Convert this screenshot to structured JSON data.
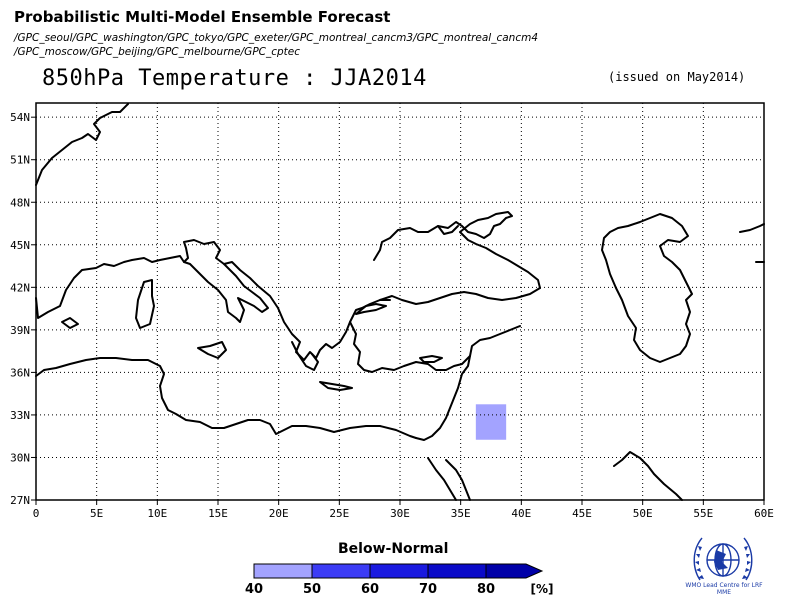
{
  "header": {
    "title": "Probabilistic Multi-Model Ensemble Forecast",
    "gpc_line1": "/GPC_seoul/GPC_washington/GPC_tokyo/GPC_exeter/GPC_montreal_cancm3/GPC_montreal_cancm4",
    "gpc_line2": "/GPC_moscow/GPC_beijing/GPC_melbourne/GPC_cptec"
  },
  "map": {
    "title": "850hPa Temperature : JJA2014",
    "issued": "(issued on May2014)",
    "lon_range": [
      0,
      60
    ],
    "lat_range": [
      27,
      55
    ],
    "lon_ticks": [
      {
        "v": 0,
        "label": "0"
      },
      {
        "v": 5,
        "label": "5E"
      },
      {
        "v": 10,
        "label": "10E"
      },
      {
        "v": 15,
        "label": "15E"
      },
      {
        "v": 20,
        "label": "20E"
      },
      {
        "v": 25,
        "label": "25E"
      },
      {
        "v": 30,
        "label": "30E"
      },
      {
        "v": 35,
        "label": "35E"
      },
      {
        "v": 40,
        "label": "40E"
      },
      {
        "v": 45,
        "label": "45E"
      },
      {
        "v": 50,
        "label": "50E"
      },
      {
        "v": 55,
        "label": "55E"
      },
      {
        "v": 60,
        "label": "60E"
      }
    ],
    "lat_ticks": [
      {
        "v": 27,
        "label": "27N"
      },
      {
        "v": 30,
        "label": "30N"
      },
      {
        "v": 33,
        "label": "33N"
      },
      {
        "v": 36,
        "label": "36N"
      },
      {
        "v": 39,
        "label": "39N"
      },
      {
        "v": 42,
        "label": "42N"
      },
      {
        "v": 45,
        "label": "45N"
      },
      {
        "v": 48,
        "label": "48N"
      },
      {
        "v": 51,
        "label": "51N"
      },
      {
        "v": 54,
        "label": "54N"
      }
    ],
    "grid": true,
    "shaded_cells": [
      {
        "lon_min": 36.25,
        "lon_max": 38.75,
        "lat_min": 31.25,
        "lat_max": 33.75,
        "category": "40-50",
        "color": "#a3a3ff"
      }
    ]
  },
  "legend": {
    "label": "Below-Normal",
    "bins": [
      {
        "color": "#a3a3ff"
      },
      {
        "color": "#3c3cf5"
      },
      {
        "color": "#1a1ae0"
      },
      {
        "color": "#0a0ac8"
      },
      {
        "color": "#0000a8"
      }
    ],
    "tick_labels": [
      "40",
      "50",
      "60",
      "70",
      "80"
    ],
    "unit": "[%]"
  },
  "logo": {
    "caption": "WMO Lead Centre for LRF MME",
    "color": "#1a3aa6"
  }
}
